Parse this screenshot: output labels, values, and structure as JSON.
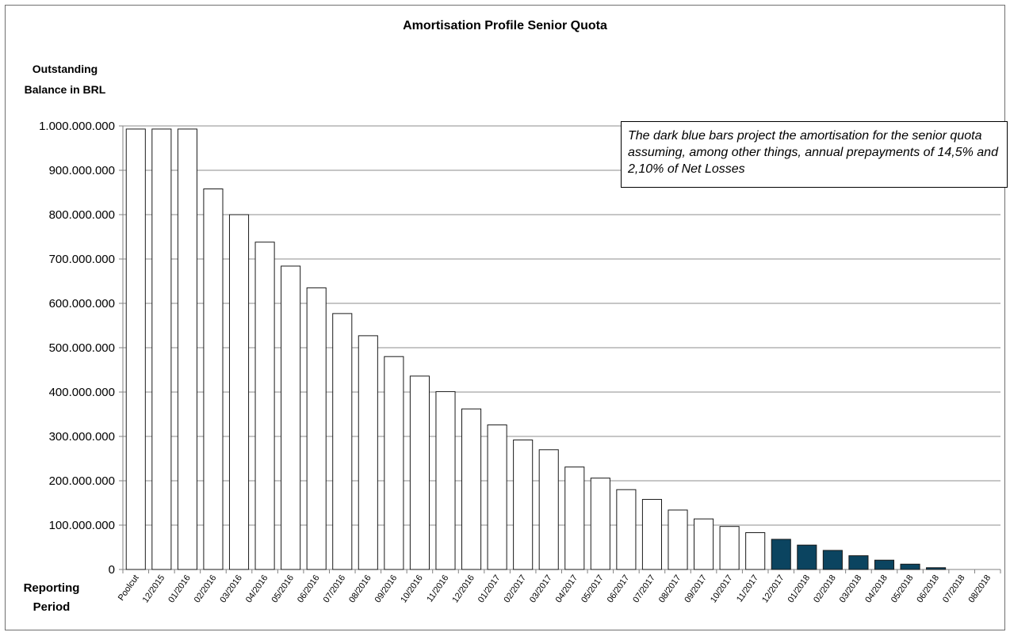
{
  "chart_data": {
    "type": "bar",
    "title": "Amortisation Profile Senior Quota",
    "ylabel": "Outstanding Balance in BRL",
    "xlabel": "Reporting Period",
    "ylim": [
      0,
      1000000000
    ],
    "yticks": [
      "0",
      "100.000.000",
      "200.000.000",
      "300.000.000",
      "400.000.000",
      "500.000.000",
      "600.000.000",
      "700.000.000",
      "800.000.000",
      "900.000.000",
      "1.000.000.000"
    ],
    "grid": true,
    "categories": [
      "Poolcut",
      "12/2015",
      "01/2016",
      "02/2016",
      "03/2016",
      "04/2016",
      "05/2016",
      "06/2016",
      "07/2016",
      "08/2016",
      "09/2016",
      "10/2016",
      "11/2016",
      "12/2016",
      "01/2017",
      "02/2017",
      "03/2017",
      "04/2017",
      "05/2017",
      "06/2017",
      "07/2017",
      "08/2017",
      "09/2017",
      "10/2017",
      "11/2017",
      "12/2017",
      "01/2018",
      "02/2018",
      "03/2018",
      "04/2018",
      "05/2018",
      "06/2018",
      "07/2018",
      "08/2018"
    ],
    "values": [
      993000000,
      993000000,
      993000000,
      858000000,
      800000000,
      738000000,
      684000000,
      635000000,
      577000000,
      527000000,
      480000000,
      436000000,
      401000000,
      362000000,
      326000000,
      292000000,
      270000000,
      231000000,
      206000000,
      180000000,
      158000000,
      134000000,
      114000000,
      97000000,
      83000000,
      68000000,
      55000000,
      43000000,
      31000000,
      21000000,
      12000000,
      4000000,
      0,
      0
    ],
    "projected_from_index": 25,
    "colors": {
      "actual_fill": "#ffffff",
      "projected_fill": "#0b4460",
      "bar_stroke": "#1a1a1a",
      "grid": "#8c8c8c"
    }
  },
  "note": "The dark blue bars project the amortisation for the senior quota assuming, among other things, annual prepayments of 14,5% and 2,10% of Net Losses"
}
